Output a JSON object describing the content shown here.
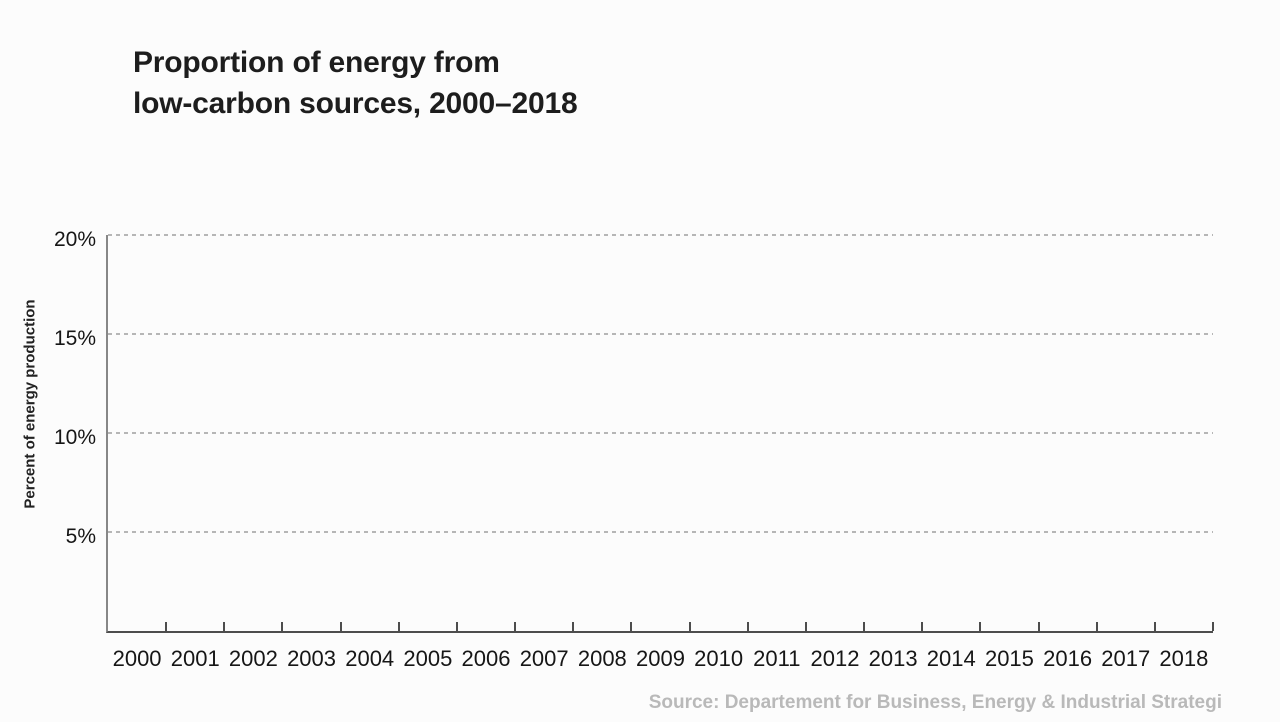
{
  "chart_data": {
    "type": "line",
    "title": "Proportion of energy from low-carbon sources, 2000–2018",
    "title_lines": [
      "Proportion of energy from",
      "low-carbon sources, 2000–2018"
    ],
    "ylabel": "Percent of energy production",
    "xlabel": "",
    "categories": [
      "2000",
      "2001",
      "2002",
      "2003",
      "2004",
      "2005",
      "2006",
      "2007",
      "2008",
      "2009",
      "2010",
      "2011",
      "2012",
      "2013",
      "2014",
      "2015",
      "2016",
      "2017",
      "2018"
    ],
    "y_ticks": [
      {
        "value": 20,
        "label": "20%"
      },
      {
        "value": 15,
        "label": "15%"
      },
      {
        "value": 10,
        "label": "10%"
      },
      {
        "value": 5,
        "label": "5%"
      }
    ],
    "ylim": [
      0,
      20
    ],
    "grid": "horizontal-dashed",
    "legend": "none",
    "series": [],
    "source": "Source: Departement for Business, Energy & Industrial Strategi"
  },
  "colors": {
    "background": "#fcfcfc",
    "title": "#1d1d1d",
    "axis_line_x": "#4d4d4d",
    "axis_line_y": "#878787",
    "tick": "#4d4d4d",
    "gridline": "#b6b6b6",
    "tick_label": "#161616",
    "axis_title": "#222222",
    "source_text": "#b9b9b9"
  }
}
